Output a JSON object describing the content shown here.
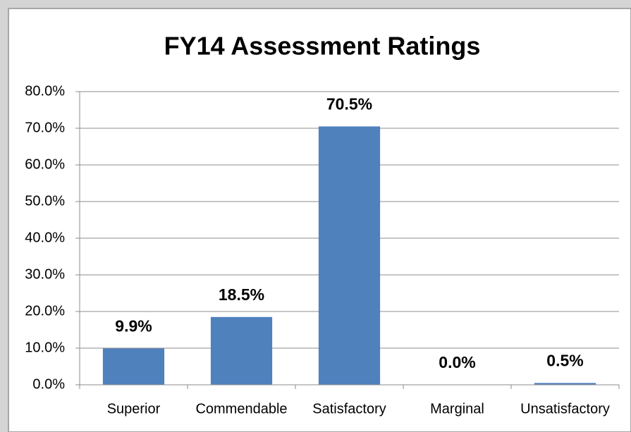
{
  "chart_data": {
    "type": "bar",
    "title": "FY14 Assessment Ratings",
    "categories": [
      "Superior",
      "Commendable",
      "Satisfactory",
      "Marginal",
      "Unsatisfactory"
    ],
    "values": [
      9.9,
      18.5,
      70.5,
      0.0,
      0.5
    ],
    "value_labels": [
      "9.9%",
      "18.5%",
      "70.5%",
      "0.0%",
      "0.5%"
    ],
    "color": "#4f81bd",
    "ylim": [
      0,
      80
    ],
    "yticks": [
      {
        "value": 0,
        "label": "0.0%"
      },
      {
        "value": 10,
        "label": "10.0%"
      },
      {
        "value": 20,
        "label": "20.0%"
      },
      {
        "value": 30,
        "label": "30.0%"
      },
      {
        "value": 40,
        "label": "40.0%"
      },
      {
        "value": 50,
        "label": "50.0%"
      },
      {
        "value": 60,
        "label": "60.0%"
      },
      {
        "value": 70,
        "label": "70.0%"
      },
      {
        "value": 80,
        "label": "80.0%"
      }
    ],
    "grid": true
  }
}
